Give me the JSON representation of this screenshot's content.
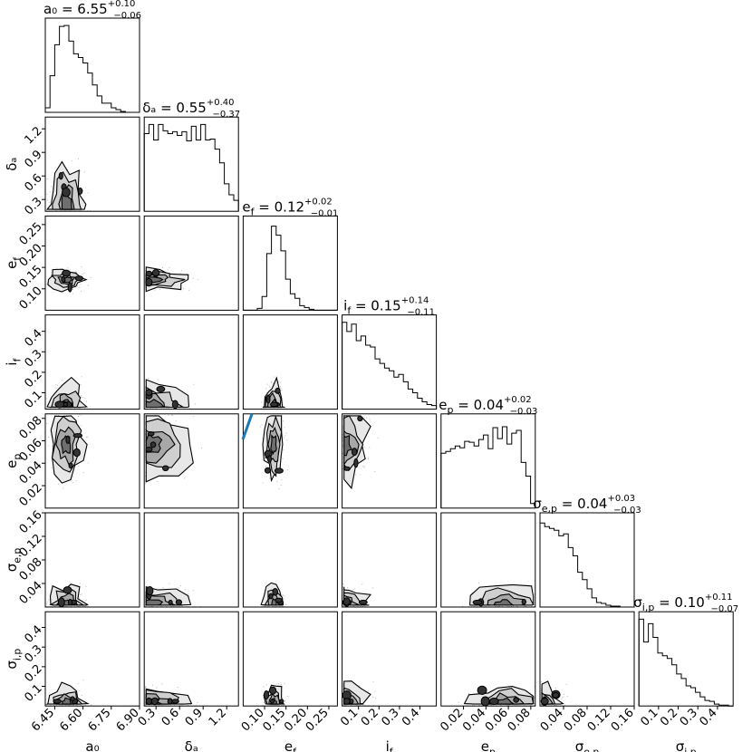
{
  "chart_data": {
    "type": "corner",
    "parameters": [
      {
        "symbol": "a_0",
        "label": "a₀",
        "median": "6.55",
        "plus": "+0.10",
        "minus": "−0.06",
        "range": [
          6.4,
          6.9
        ],
        "ticks": [
          "6.45",
          "6.60",
          "6.75",
          "6.90"
        ],
        "tick_values": [
          6.45,
          6.6,
          6.75,
          6.9
        ],
        "hist": [
          0.05,
          0.4,
          0.74,
          0.94,
          0.95,
          0.78,
          0.64,
          0.6,
          0.54,
          0.43,
          0.3,
          0.18,
          0.1,
          0.1,
          0.05,
          0.03,
          0.01,
          0.0,
          0.0,
          0.0
        ]
      },
      {
        "symbol": "delta_a",
        "label": "δₐ",
        "median": "0.55",
        "plus": "+0.40",
        "minus": "−0.37",
        "range": [
          0.15,
          1.35
        ],
        "ticks": [
          "0.3",
          "0.6",
          "0.9",
          "1.2"
        ],
        "tick_values": [
          0.3,
          0.6,
          0.9,
          1.2
        ],
        "hist": [
          0.85,
          0.95,
          0.78,
          0.95,
          0.88,
          0.85,
          0.87,
          0.83,
          0.87,
          0.77,
          0.93,
          0.78,
          0.95,
          0.78,
          0.79,
          0.68,
          0.53,
          0.3,
          0.18,
          0.12
        ]
      },
      {
        "symbol": "e_f",
        "label": "e_f",
        "median": "0.12",
        "plus": "+0.02",
        "minus": "−0.01",
        "range": [
          0.05,
          0.27
        ],
        "ticks": [
          "0.10",
          "0.15",
          "0.20",
          "0.25"
        ],
        "tick_values": [
          0.1,
          0.15,
          0.2,
          0.25
        ],
        "hist": [
          0.0,
          0.0,
          0.0,
          0.02,
          0.15,
          0.62,
          0.92,
          0.82,
          0.65,
          0.34,
          0.18,
          0.13,
          0.05,
          0.03,
          0.01,
          0.0,
          0.0,
          0.0,
          0.0,
          0.0
        ]
      },
      {
        "symbol": "i_f",
        "label": "i_f",
        "median": "0.15",
        "plus": "+0.14",
        "minus": "−0.11",
        "range": [
          0.02,
          0.48
        ],
        "ticks": [
          "0.1",
          "0.2",
          "0.3",
          "0.4"
        ],
        "tick_values": [
          0.1,
          0.2,
          0.3,
          0.4
        ],
        "hist": [
          0.95,
          0.85,
          0.93,
          0.75,
          0.8,
          0.7,
          0.68,
          0.55,
          0.5,
          0.45,
          0.42,
          0.35,
          0.38,
          0.3,
          0.22,
          0.18,
          0.12,
          0.08,
          0.05,
          0.04
        ]
      },
      {
        "symbol": "e_p",
        "label": "e_p",
        "median": "0.04",
        "plus": "+0.02",
        "minus": "−0.03",
        "range": [
          0.0,
          0.084
        ],
        "ticks": [
          "0.02",
          "0.04",
          "0.06",
          "0.08"
        ],
        "tick_values": [
          0.02,
          0.04,
          0.06,
          0.08
        ],
        "hist": [
          0.6,
          0.62,
          0.65,
          0.68,
          0.66,
          0.73,
          0.72,
          0.68,
          0.75,
          0.8,
          0.65,
          0.88,
          0.76,
          0.89,
          0.7,
          0.82,
          0.85,
          0.5,
          0.35,
          0.05
        ]
      },
      {
        "symbol": "sigma_ep",
        "label": "σ_e,p",
        "median": "0.04",
        "plus": "+0.03",
        "minus": "−0.03",
        "range": [
          0.0,
          0.16
        ],
        "ticks": [
          "0.04",
          "0.08",
          "0.12",
          "0.16"
        ],
        "tick_values": [
          0.04,
          0.08,
          0.12,
          0.16
        ],
        "hist": [
          0.92,
          0.88,
          0.86,
          0.84,
          0.78,
          0.8,
          0.65,
          0.56,
          0.38,
          0.3,
          0.2,
          0.1,
          0.05,
          0.04,
          0.02,
          0.01,
          0.01,
          0.0,
          0.0,
          0.0
        ]
      },
      {
        "symbol": "sigma_ip",
        "label": "σ_i,p",
        "median": "0.10",
        "plus": "+0.11",
        "minus": "−0.07",
        "range": [
          0.0,
          0.48
        ],
        "ticks": [
          "0.1",
          "0.2",
          "0.3",
          "0.4"
        ],
        "tick_values": [
          0.1,
          0.2,
          0.3,
          0.4
        ],
        "hist": [
          0.95,
          0.7,
          0.9,
          0.75,
          0.58,
          0.55,
          0.52,
          0.45,
          0.35,
          0.3,
          0.22,
          0.2,
          0.15,
          0.1,
          0.06,
          0.05,
          0.02,
          0.01,
          0.01,
          0.0
        ]
      }
    ],
    "axis_labels": {
      "x": [
        "a₀",
        "δₐ",
        "e_f",
        "i_f",
        "e_p",
        "σ_e,p",
        "σ_i,p"
      ],
      "y": [
        "δₐ",
        "e_f",
        "i_f",
        "e_p",
        "σ_e,p",
        "σ_i,p"
      ]
    },
    "grid": false,
    "legend": "none"
  }
}
